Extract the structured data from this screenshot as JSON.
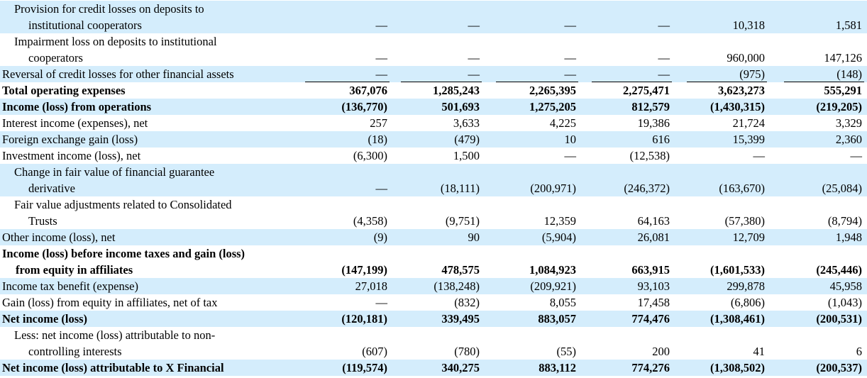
{
  "rows": [
    {
      "lines": [
        "Provision for credit losses on deposits to",
        "institutional cooperators"
      ],
      "bold": false,
      "shaded": true,
      "values": [
        "—",
        "—",
        "—",
        "—",
        "10,318",
        "1,581"
      ]
    },
    {
      "lines": [
        "Impairment loss on deposits to institutional",
        "cooperators"
      ],
      "bold": false,
      "shaded": false,
      "values": [
        "—",
        "—",
        "—",
        "—",
        "960,000",
        "147,126"
      ]
    },
    {
      "lines": [
        "Reversal of credit losses for other financial assets"
      ],
      "bold": false,
      "shaded": true,
      "values": [
        "—",
        "—",
        "—",
        "—",
        "(975)",
        "(148)"
      ]
    },
    {
      "lines": [
        "Total operating expenses"
      ],
      "bold": true,
      "shaded": false,
      "values": [
        "367,076",
        "1,285,243",
        "2,265,395",
        "2,275,471",
        "3,623,273",
        "555,291"
      ]
    },
    {
      "lines": [
        "Income (loss) from operations"
      ],
      "bold": true,
      "shaded": true,
      "values": [
        "(136,770)",
        "501,693",
        "1,275,205",
        "812,579",
        "(1,430,315)",
        "(219,205)"
      ]
    },
    {
      "lines": [
        "Interest income (expenses), net"
      ],
      "bold": false,
      "shaded": false,
      "values": [
        "257",
        "3,633",
        "4,225",
        "19,386",
        "21,724",
        "3,329"
      ]
    },
    {
      "lines": [
        "Foreign exchange gain (loss)"
      ],
      "bold": false,
      "shaded": true,
      "values": [
        "(18)",
        "(479)",
        "10",
        "616",
        "15,399",
        "2,360"
      ]
    },
    {
      "lines": [
        "Investment income (loss), net"
      ],
      "bold": false,
      "shaded": false,
      "values": [
        "(6,300)",
        "1,500",
        "—",
        "(12,538)",
        "—",
        "—"
      ]
    },
    {
      "lines": [
        "Change in fair value of financial guarantee",
        "derivative"
      ],
      "bold": false,
      "shaded": true,
      "values": [
        "—",
        "(18,111)",
        "(200,971)",
        "(246,372)",
        "(163,670)",
        "(25,084)"
      ]
    },
    {
      "lines": [
        "Fair value adjustments related to Consolidated",
        "Trusts"
      ],
      "bold": false,
      "shaded": false,
      "values": [
        "(4,358)",
        "(9,751)",
        "12,359",
        "64,163",
        "(57,380)",
        "(8,794)"
      ]
    },
    {
      "lines": [
        "Other income (loss), net"
      ],
      "bold": false,
      "shaded": true,
      "values": [
        "(9)",
        "90",
        "(5,904)",
        "26,081",
        "12,709",
        "1,948"
      ]
    },
    {
      "lines": [
        "Income (loss) before income taxes and gain (loss)",
        "from equity in affiliates"
      ],
      "bold": true,
      "shaded": false,
      "values": [
        "(147,199)",
        "478,575",
        "1,084,923",
        "663,915",
        "(1,601,533)",
        "(245,446)"
      ]
    },
    {
      "lines": [
        "Income tax benefit (expense)"
      ],
      "bold": false,
      "shaded": true,
      "values": [
        "27,018",
        "(138,248)",
        "(209,921)",
        "93,103",
        "299,878",
        "45,958"
      ]
    },
    {
      "lines": [
        "Gain (loss) from equity in affiliates, net of tax"
      ],
      "bold": false,
      "shaded": false,
      "values": [
        "—",
        "(832)",
        "8,055",
        "17,458",
        "(6,806)",
        "(1,043)"
      ]
    },
    {
      "lines": [
        "Net income (loss)"
      ],
      "bold": true,
      "shaded": true,
      "values": [
        "(120,181)",
        "339,495",
        "883,057",
        "774,476",
        "(1,308,461)",
        "(200,531)"
      ]
    },
    {
      "lines": [
        "Less: net income (loss) attributable to non-",
        "controlling interests"
      ],
      "bold": false,
      "shaded": false,
      "values": [
        "(607)",
        "(780)",
        "(55)",
        "200",
        "41",
        "6"
      ]
    },
    {
      "lines": [
        "Net income (loss) attributable to X Financial"
      ],
      "bold": true,
      "shaded": true,
      "values": [
        "(119,574)",
        "340,275",
        "883,112",
        "774,276",
        "(1,308,502)",
        "(200,537)"
      ]
    }
  ]
}
